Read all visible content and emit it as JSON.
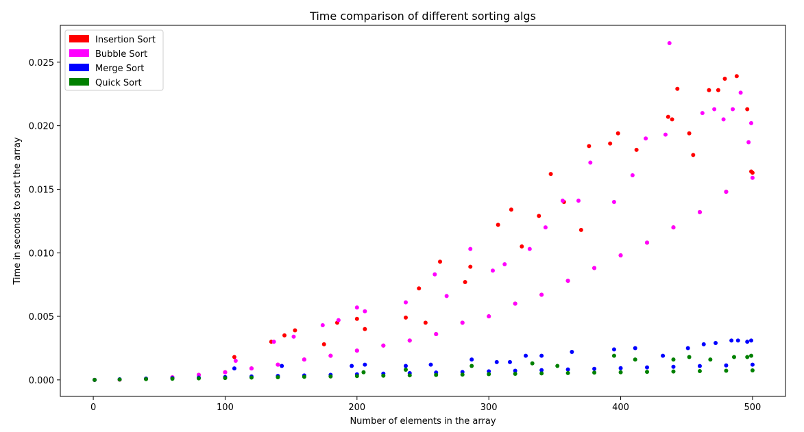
{
  "chart_data": {
    "type": "scatter",
    "title": "Time comparison of different sorting algs",
    "xlabel": "Number of elements in the array",
    "ylabel": "Time in seconds to sort the array",
    "xlim": [
      -25,
      525
    ],
    "ylim": [
      -0.0013,
      0.0279
    ],
    "xticks": [
      0,
      100,
      200,
      300,
      400,
      500
    ],
    "xtick_labels": [
      "0",
      "100",
      "200",
      "300",
      "400",
      "500"
    ],
    "yticks": [
      0.0,
      0.005,
      0.01,
      0.015,
      0.02,
      0.025
    ],
    "ytick_labels": [
      "0.000",
      "0.005",
      "0.010",
      "0.015",
      "0.020",
      "0.025"
    ],
    "grid": false,
    "legend_position": "top-left",
    "series": [
      {
        "name": "Insertion Sort",
        "color": "#ff0000",
        "x": [
          1,
          20,
          40,
          60,
          80,
          100,
          120,
          140,
          160,
          180,
          200,
          220,
          240,
          260,
          280,
          300,
          320,
          340,
          360,
          380,
          400,
          420,
          440,
          460,
          480,
          500,
          107,
          135,
          145,
          153,
          175,
          185,
          200,
          206,
          237,
          247,
          252,
          263,
          282,
          286,
          307,
          317,
          325,
          338,
          347,
          357,
          370,
          376,
          392,
          398,
          412,
          436,
          443,
          452,
          467,
          474,
          479,
          488,
          496,
          499,
          439,
          455
        ],
        "y": [
          0.0,
          2e-05,
          8e-05,
          0.0002,
          0.0004,
          0.0006,
          0.0009,
          0.0012,
          0.0016,
          0.0019,
          0.0023,
          0.0027,
          0.0031,
          0.0036,
          0.0045,
          0.005,
          0.006,
          0.0067,
          0.0078,
          0.0088,
          0.0098,
          0.0108,
          0.012,
          0.0132,
          0.0148,
          0.0163,
          0.0018,
          0.003,
          0.0035,
          0.0039,
          0.0028,
          0.0045,
          0.0048,
          0.004,
          0.0049,
          0.0072,
          0.0045,
          0.0093,
          0.0077,
          0.0089,
          0.0122,
          0.0134,
          0.0105,
          0.0129,
          0.0162,
          0.014,
          0.0118,
          0.0184,
          0.0186,
          0.0194,
          0.0181,
          0.0207,
          0.0229,
          0.0194,
          0.0228,
          0.0228,
          0.0237,
          0.0239,
          0.0213,
          0.0164,
          0.0205,
          0.0177
        ]
      },
      {
        "name": "Bubble Sort",
        "color": "#ff00ff",
        "x": [
          1,
          20,
          40,
          60,
          80,
          100,
          120,
          140,
          160,
          180,
          200,
          220,
          240,
          260,
          280,
          300,
          320,
          340,
          360,
          380,
          400,
          420,
          440,
          460,
          480,
          500,
          108,
          137,
          152,
          174,
          186,
          200,
          206,
          237,
          259,
          268,
          286,
          303,
          312,
          331,
          343,
          356,
          368,
          377,
          395,
          409,
          419,
          434,
          437,
          462,
          471,
          478,
          485,
          491,
          497,
          499
        ],
        "y": [
          0.0,
          2e-05,
          8e-05,
          0.0002,
          0.0004,
          0.0006,
          0.0009,
          0.0012,
          0.0016,
          0.0019,
          0.0023,
          0.0027,
          0.0031,
          0.0036,
          0.0045,
          0.005,
          0.006,
          0.0067,
          0.0078,
          0.0088,
          0.0098,
          0.0108,
          0.012,
          0.0132,
          0.0148,
          0.0159,
          0.0015,
          0.003,
          0.0034,
          0.0043,
          0.0047,
          0.0057,
          0.0054,
          0.0061,
          0.0083,
          0.0066,
          0.0103,
          0.0086,
          0.0091,
          0.0103,
          0.012,
          0.0141,
          0.0141,
          0.0171,
          0.014,
          0.0161,
          0.019,
          0.0193,
          0.0265,
          0.021,
          0.0213,
          0.0205,
          0.0213,
          0.0226,
          0.0187,
          0.0202
        ]
      },
      {
        "name": "Merge Sort",
        "color": "#0000ff",
        "x": [
          1,
          20,
          40,
          60,
          80,
          100,
          120,
          140,
          160,
          180,
          200,
          220,
          240,
          260,
          280,
          300,
          320,
          340,
          360,
          380,
          400,
          420,
          440,
          460,
          480,
          500,
          107,
          143,
          196,
          206,
          237,
          256,
          287,
          306,
          316,
          328,
          340,
          363,
          395,
          411,
          432,
          451,
          463,
          472,
          484,
          489,
          496,
          499
        ],
        "y": [
          0.0,
          5e-05,
          0.0001,
          0.00014,
          0.00018,
          0.00022,
          0.00027,
          0.00031,
          0.00035,
          0.0004,
          0.00044,
          0.00049,
          0.00053,
          0.00058,
          0.00062,
          0.00067,
          0.00072,
          0.00077,
          0.00082,
          0.00087,
          0.00092,
          0.00098,
          0.00103,
          0.00109,
          0.00114,
          0.0012,
          0.0009,
          0.0011,
          0.0011,
          0.0012,
          0.0011,
          0.0012,
          0.0016,
          0.0014,
          0.0014,
          0.0019,
          0.0019,
          0.0022,
          0.0024,
          0.0025,
          0.0019,
          0.0025,
          0.0028,
          0.0029,
          0.0031,
          0.0031,
          0.003,
          0.0031
        ]
      },
      {
        "name": "Quick Sort",
        "color": "#008000",
        "x": [
          1,
          20,
          40,
          60,
          80,
          100,
          120,
          140,
          160,
          180,
          200,
          220,
          240,
          260,
          280,
          300,
          320,
          340,
          360,
          380,
          400,
          420,
          440,
          460,
          480,
          500,
          205,
          237,
          287,
          333,
          352,
          395,
          411,
          440,
          452,
          468,
          486,
          496,
          499
        ],
        "y": [
          0.0,
          3e-05,
          6e-05,
          9e-05,
          0.00012,
          0.00015,
          0.00018,
          0.00021,
          0.00024,
          0.00027,
          0.0003,
          0.00033,
          0.00036,
          0.00039,
          0.00042,
          0.00045,
          0.00048,
          0.00051,
          0.00054,
          0.00057,
          0.0006,
          0.00063,
          0.00066,
          0.00069,
          0.00072,
          0.00075,
          0.0006,
          0.0008,
          0.0011,
          0.0013,
          0.0011,
          0.0019,
          0.0016,
          0.0016,
          0.0018,
          0.0016,
          0.0018,
          0.0018,
          0.0019
        ]
      }
    ]
  }
}
